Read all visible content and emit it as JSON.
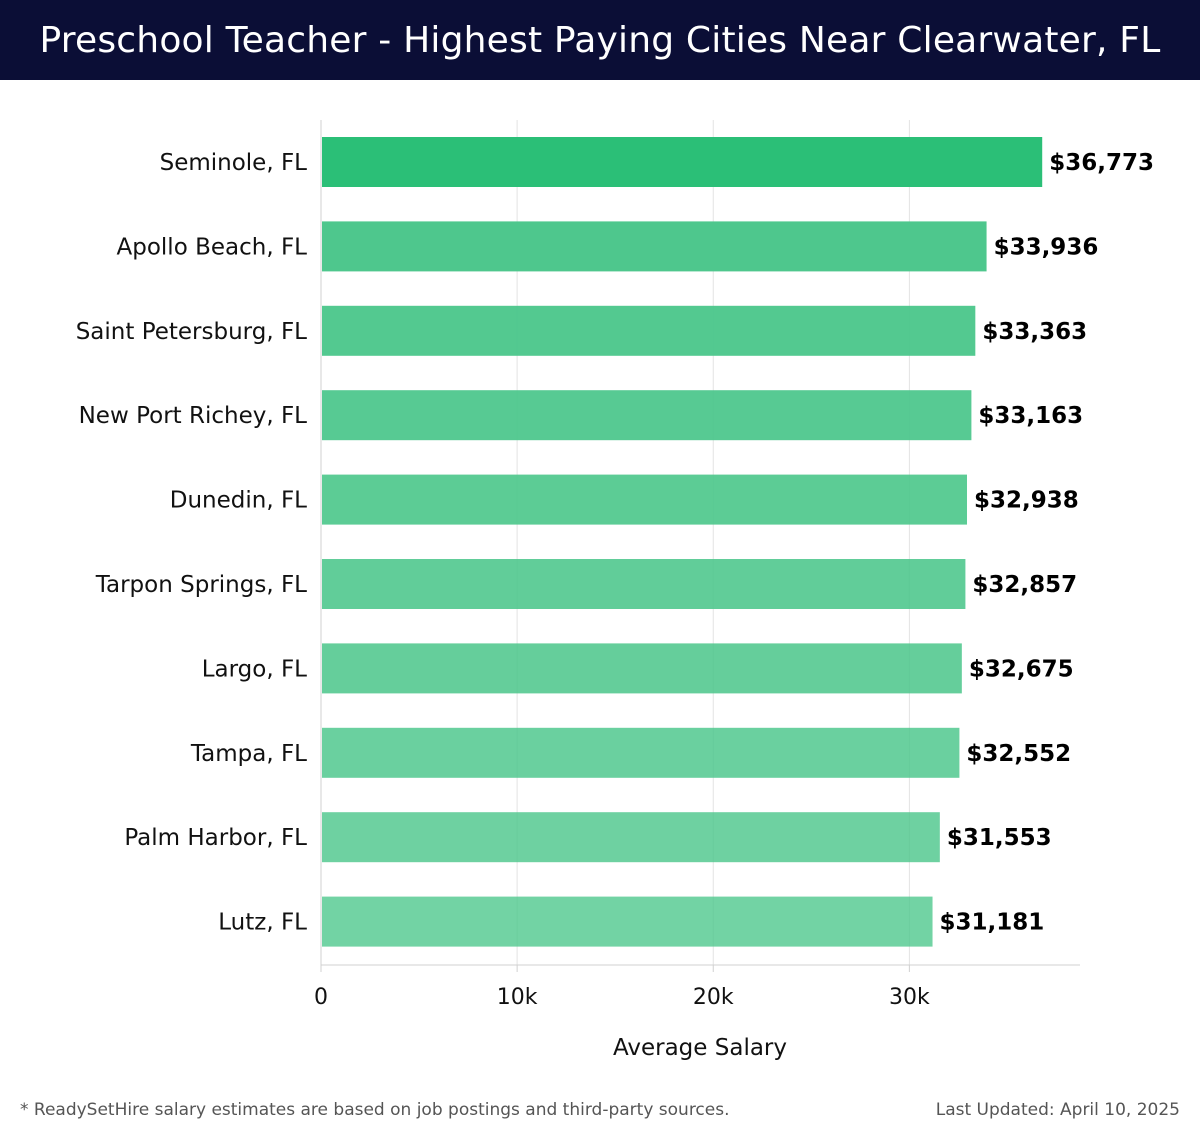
{
  "header": {
    "title": "Preschool Teacher - Highest Paying Cities Near Clearwater, FL"
  },
  "footer": {
    "note": "* ReadySetHire salary estimates are based on job postings and third-party sources.",
    "updated": "Last Updated: April 10, 2025"
  },
  "colors": {
    "header_bg": "#0b0e36",
    "bar_top": "#2bbf77",
    "bar": "#4ac68a"
  },
  "chart_data": {
    "type": "bar",
    "orientation": "horizontal",
    "categories": [
      "Seminole, FL",
      "Apollo Beach, FL",
      "Saint Petersburg, FL",
      "New Port Richey, FL",
      "Dunedin, FL",
      "Tarpon Springs, FL",
      "Largo, FL",
      "Tampa, FL",
      "Palm Harbor, FL",
      "Lutz, FL"
    ],
    "values": [
      36773,
      33936,
      33363,
      33163,
      32938,
      32857,
      32675,
      32552,
      31553,
      31181
    ],
    "value_labels": [
      "$36,773",
      "$33,936",
      "$33,363",
      "$33,163",
      "$32,938",
      "$32,857",
      "$32,675",
      "$32,552",
      "$31,553",
      "$31,181"
    ],
    "xlabel": "Average Salary",
    "ylabel": "",
    "xlim": [
      0,
      38700
    ],
    "xticks": [
      0,
      10000,
      20000,
      30000
    ],
    "xtick_labels": [
      "0",
      "10k",
      "20k",
      "30k"
    ],
    "grid": true,
    "legend": "none"
  }
}
